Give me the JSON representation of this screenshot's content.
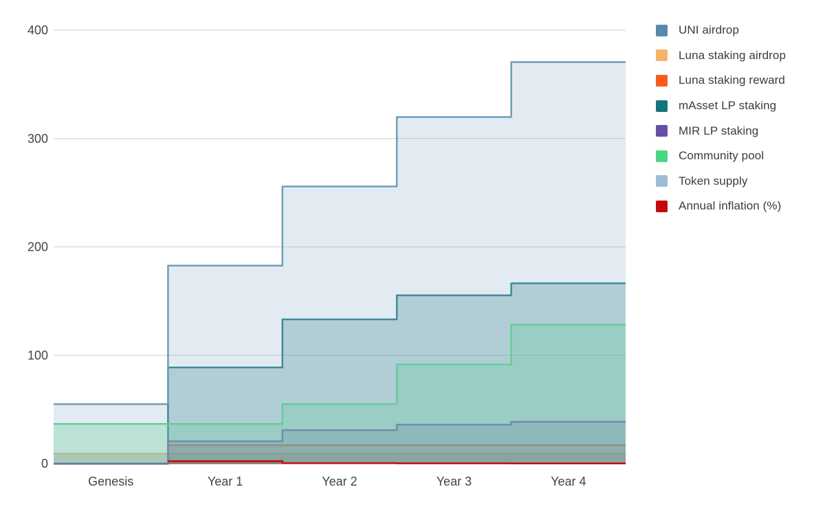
{
  "chart": {
    "background": "#ffffff",
    "axis_label_color": "#444444",
    "gridline_color": "#cccccc",
    "baseline_color": "#333333",
    "area_opacity": 0.3
  },
  "chart_data": {
    "type": "area",
    "variant": "stepped",
    "title": "",
    "xlabel": "",
    "ylabel": "",
    "categories": [
      "Genesis",
      "Year 1",
      "Year 2",
      "Year 3",
      "Year 4"
    ],
    "series": [
      {
        "name": "UNI airdrop",
        "color": "#5789AC",
        "values": [
          9.15,
          9.15,
          9.15,
          9.15,
          9.15
        ]
      },
      {
        "name": "Luna staking airdrop",
        "color": "#F6B26B",
        "values": [
          9.15,
          9.15,
          9.15,
          9.15,
          9.15
        ]
      },
      {
        "name": "Luna staking reward",
        "color": "#FB5A1D",
        "values": [
          0,
          17.05,
          17.05,
          17.05,
          17.05
        ]
      },
      {
        "name": "mAsset LP staking",
        "color": "#17747F",
        "values": [
          0,
          88.75,
          133.1,
          155.3,
          166.4
        ]
      },
      {
        "name": "MIR LP staking",
        "color": "#674EA7",
        "values": [
          0,
          20.6,
          30.9,
          36,
          38.6
        ]
      },
      {
        "name": "Community pool",
        "color": "#4CD583",
        "values": [
          36.6,
          36.6,
          54.9,
          91.5,
          128.1
        ]
      },
      {
        "name": "Token supply",
        "color": "#9EBCD2",
        "line_color": "#6F9CBA",
        "values": [
          54.9,
          182.7,
          255.8,
          319.9,
          370.6
        ]
      },
      {
        "name": "Annual inflation (%)",
        "color": "#C40B0B",
        "values": [
          null,
          2.33,
          0.4,
          0.25,
          0.16
        ]
      }
    ],
    "yticks": [
      0,
      100,
      200,
      300,
      400
    ],
    "ylim": [
      0,
      400
    ],
    "grid": true,
    "legend_position": "right"
  }
}
